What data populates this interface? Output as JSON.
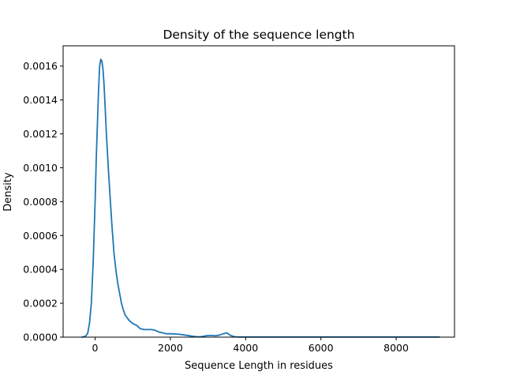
{
  "chart_data": {
    "type": "line",
    "title": "Density of the sequence length",
    "xlabel": "Sequence Length in residues",
    "ylabel": "Density",
    "xlim": [
      -850,
      9550
    ],
    "ylim": [
      0,
      0.00172
    ],
    "xticks": [
      0,
      2000,
      4000,
      6000,
      8000
    ],
    "xtick_labels": [
      "0",
      "2000",
      "4000",
      "6000",
      "8000"
    ],
    "yticks": [
      0,
      0.0002,
      0.0004,
      0.0006,
      0.0008,
      0.001,
      0.0012,
      0.0014,
      0.0016
    ],
    "ytick_labels": [
      "0.0000",
      "0.0002",
      "0.0004",
      "0.0006",
      "0.0008",
      "0.0010",
      "0.0012",
      "0.0014",
      "0.0016"
    ],
    "grid": false,
    "color": "#1f77b4",
    "series": [
      {
        "x": [
          -350,
          -260,
          -200,
          -150,
          -100,
          -50,
          0,
          30,
          60,
          90,
          120,
          150,
          180,
          210,
          240,
          270,
          300,
          350,
          400,
          450,
          500,
          550,
          600,
          650,
          700,
          750,
          800,
          900,
          1000,
          1100,
          1200,
          1300,
          1400,
          1500,
          1600,
          1700,
          1800,
          1900,
          2000,
          2200,
          2400,
          2600,
          2700,
          2800,
          2950,
          3000,
          3100,
          3200,
          3300,
          3400,
          3500,
          3600,
          3700,
          3800,
          4000,
          4500,
          5000,
          5500,
          6000,
          6500,
          7000,
          7500,
          8000,
          8500,
          9000,
          9150
        ],
        "y": [
          0,
          5e-06,
          2e-05,
          8e-05,
          0.0002,
          0.00045,
          0.0008,
          0.00105,
          0.00125,
          0.00145,
          0.0016,
          0.00164,
          0.00163,
          0.00158,
          0.00148,
          0.00134,
          0.0012,
          0.001,
          0.00082,
          0.00065,
          0.0005,
          0.0004,
          0.00032,
          0.00026,
          0.0002,
          0.00016,
          0.00013,
          0.0001,
          8e-05,
          7e-05,
          5e-05,
          4.5e-05,
          4.5e-05,
          4.5e-05,
          4e-05,
          3e-05,
          2.5e-05,
          2e-05,
          2e-05,
          1.8e-05,
          1.2e-05,
          5e-06,
          2e-06,
          2e-06,
          8e-06,
          1e-05,
          1e-05,
          8e-06,
          1.2e-05,
          2e-05,
          2.5e-05,
          1e-05,
          3e-06,
          1e-06,
          1e-06,
          1e-06,
          1e-06,
          1e-06,
          1e-06,
          1e-06,
          1e-06,
          1e-06,
          1e-06,
          1e-06,
          1e-06,
          1e-06
        ]
      }
    ]
  }
}
